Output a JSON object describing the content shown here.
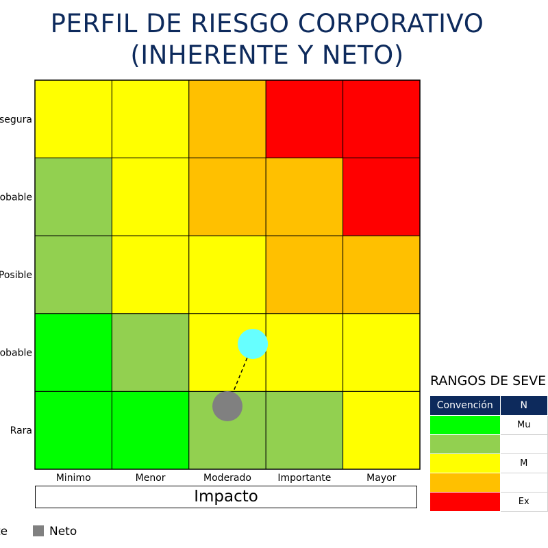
{
  "title": {
    "line1": "PERFIL DE RIESGO CORPORATIVO",
    "line2": "(INHERENTE Y NETO)"
  },
  "chart_data": {
    "type": "heatmap",
    "title": "PERFIL DE RIESGO CORPORATIVO (INHERENTE Y NETO)",
    "xlabel": "Impacto",
    "ylabel": "",
    "x_categories": [
      "Minimo",
      "Menor",
      "Moderado",
      "Importante",
      "Mayor"
    ],
    "y_categories_top_to_bottom": [
      "segura",
      "robable",
      "Posible",
      "robable",
      "Rara"
    ],
    "cell_levels_top_to_bottom": [
      [
        "medio",
        "medio",
        "alto",
        "extremo",
        "extremo"
      ],
      [
        "bajo",
        "medio",
        "alto",
        "alto",
        "extremo"
      ],
      [
        "bajo",
        "medio",
        "medio",
        "alto",
        "alto"
      ],
      [
        "muy_bajo",
        "bajo",
        "medio",
        "medio",
        "medio"
      ],
      [
        "muy_bajo",
        "muy_bajo",
        "bajo",
        "bajo",
        "medio"
      ]
    ],
    "level_colors": {
      "muy_bajo": "#00ff00",
      "bajo": "#92d050",
      "medio": "#ffff00",
      "alto": "#ffc000",
      "extremo": "#ff0000"
    },
    "points": [
      {
        "series": "inherente",
        "impact": 3.33,
        "probability": 2.11,
        "color": "#66ffff"
      },
      {
        "series": "neto",
        "impact": 3.0,
        "probability": 1.31,
        "color": "#808080"
      }
    ],
    "connector": {
      "style": "dashed",
      "color": "#000000"
    }
  },
  "legend": {
    "items": [
      {
        "label": "te",
        "color": "#66ffff"
      },
      {
        "label": "Neto",
        "color": "#808080"
      }
    ]
  },
  "severity": {
    "title": "RANGOS DE SEVE",
    "headers": [
      "Convención",
      "N"
    ],
    "rows": [
      {
        "color": "#00ff00",
        "label": "Mu"
      },
      {
        "color": "#92d050",
        "label": ""
      },
      {
        "color": "#ffff00",
        "label": "M"
      },
      {
        "color": "#ffc000",
        "label": ""
      },
      {
        "color": "#ff0000",
        "label": "Ex"
      }
    ]
  }
}
